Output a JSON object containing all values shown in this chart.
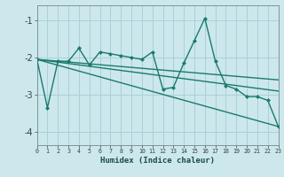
{
  "xlabel": "Humidex (Indice chaleur)",
  "bg_color": "#cce8ec",
  "grid_color": "#aad0d8",
  "line_color": "#1a7a6e",
  "x": [
    0,
    1,
    2,
    3,
    4,
    5,
    6,
    7,
    8,
    9,
    10,
    11,
    12,
    13,
    14,
    15,
    16,
    17,
    18,
    19,
    20,
    21,
    22,
    23
  ],
  "series1": [
    -2.05,
    -3.35,
    -2.1,
    -2.1,
    -1.75,
    -2.2,
    -1.85,
    -1.9,
    -1.95,
    -2.0,
    -2.05,
    -1.85,
    -2.85,
    -2.8,
    -2.15,
    -1.55,
    -0.95,
    -2.1,
    -2.75,
    -2.85,
    -3.05,
    -3.05,
    -3.15,
    -3.85
  ],
  "series2_x": [
    0,
    23
  ],
  "series2_y": [
    -2.05,
    -2.9
  ],
  "series3_x": [
    0,
    23
  ],
  "series3_y": [
    -2.05,
    -2.6
  ],
  "series4_x": [
    0,
    23
  ],
  "series4_y": [
    -2.05,
    -3.85
  ],
  "xlim": [
    0,
    23
  ],
  "ylim": [
    -4.35,
    -0.6
  ],
  "xtick_labels": [
    "0",
    "1",
    "2",
    "3",
    "4",
    "5",
    "6",
    "7",
    "8",
    "9",
    "10",
    "11",
    "12",
    "13",
    "14",
    "15",
    "16",
    "17",
    "18",
    "19",
    "20",
    "21",
    "22",
    "23"
  ],
  "ytick_values": [
    -4,
    -3,
    -2,
    -1
  ],
  "markersize": 2.5,
  "linewidth": 1.0
}
